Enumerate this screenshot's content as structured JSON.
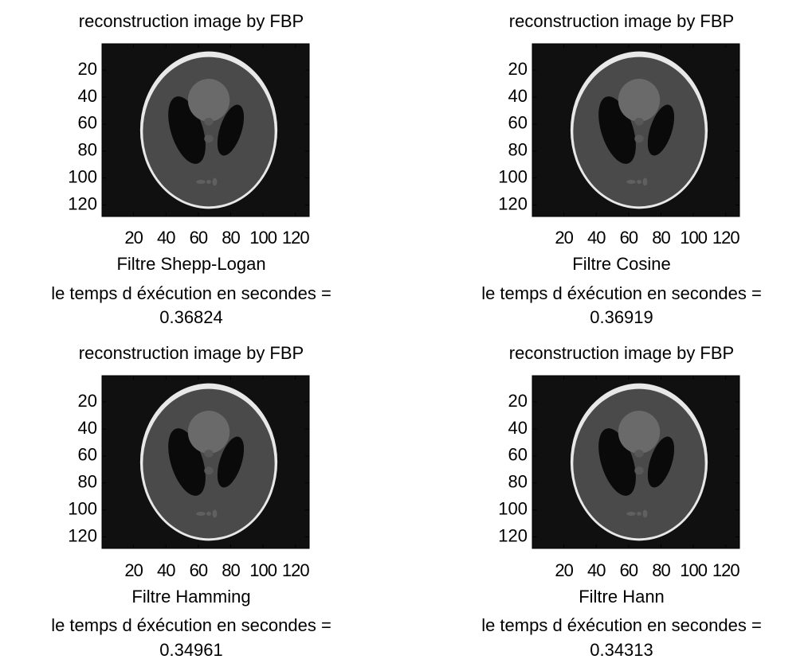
{
  "chart_data": [
    {
      "type": "image",
      "title": "reconstruction image by FBP",
      "xlabel": "Filtre Shepp-Logan",
      "caption": "le temps d éxécution en secondes =",
      "time": 0.36824,
      "xlim": [
        0.5,
        128.5
      ],
      "ylim": [
        0.5,
        128.5
      ],
      "xticks": [
        20,
        40,
        60,
        80,
        100,
        120
      ],
      "yticks": [
        20,
        40,
        60,
        80,
        100,
        120
      ],
      "y_reversed": true
    },
    {
      "type": "image",
      "title": "reconstruction image by FBP",
      "xlabel": "Filtre Cosine",
      "caption": "le temps d éxécution en secondes =",
      "time": 0.36919,
      "xlim": [
        0.5,
        128.5
      ],
      "ylim": [
        0.5,
        128.5
      ],
      "xticks": [
        20,
        40,
        60,
        80,
        100,
        120
      ],
      "yticks": [
        20,
        40,
        60,
        80,
        100,
        120
      ],
      "y_reversed": true
    },
    {
      "type": "image",
      "title": "reconstruction image by FBP",
      "xlabel": "Filtre Hamming",
      "caption": "le temps d éxécution en secondes =",
      "time": 0.34961,
      "xlim": [
        0.5,
        128.5
      ],
      "ylim": [
        0.5,
        128.5
      ],
      "xticks": [
        20,
        40,
        60,
        80,
        100,
        120
      ],
      "yticks": [
        20,
        40,
        60,
        80,
        100,
        120
      ],
      "y_reversed": true
    },
    {
      "type": "image",
      "title": "reconstruction image by FBP",
      "xlabel": "Filtre Hann",
      "caption": "le temps d éxécution en secondes =",
      "time": 0.34313,
      "xlim": [
        0.5,
        128.5
      ],
      "ylim": [
        0.5,
        128.5
      ],
      "xticks": [
        20,
        40,
        60,
        80,
        100,
        120
      ],
      "yticks": [
        20,
        40,
        60,
        80,
        100,
        120
      ],
      "y_reversed": true
    }
  ]
}
